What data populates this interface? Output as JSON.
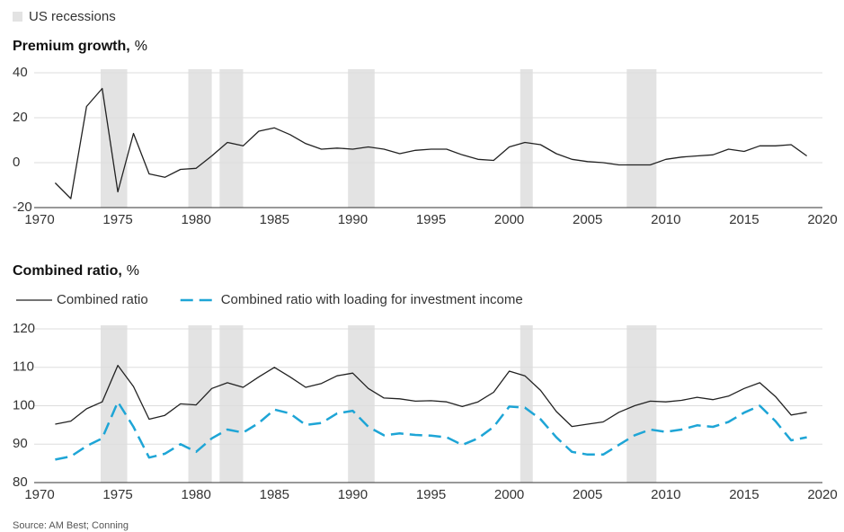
{
  "recessions": {
    "label": "US recessions",
    "color": "#e3e3e3",
    "spans": [
      [
        1973.9,
        1975.6
      ],
      [
        1979.5,
        1981.0
      ],
      [
        1981.5,
        1983.0
      ],
      [
        1989.7,
        1991.4
      ],
      [
        2000.7,
        2001.5
      ],
      [
        2007.5,
        2009.4
      ]
    ]
  },
  "source": "Source: AM Best; Conning",
  "chart_data": [
    {
      "type": "line",
      "title": "Premium growth,",
      "title_unit": "%",
      "x": [
        1971,
        1972,
        1973,
        1974,
        1975,
        1976,
        1977,
        1978,
        1979,
        1980,
        1981,
        1982,
        1983,
        1984,
        1985,
        1986,
        1987,
        1988,
        1989,
        1990,
        1991,
        1992,
        1993,
        1994,
        1995,
        1996,
        1997,
        1998,
        1999,
        2000,
        2001,
        2002,
        2003,
        2004,
        2005,
        2006,
        2007,
        2008,
        2009,
        2010,
        2011,
        2012,
        2013,
        2014,
        2015,
        2016,
        2017,
        2018,
        2019
      ],
      "values": [
        -9,
        -16,
        25,
        33,
        -13,
        13,
        -5,
        -6.5,
        -3,
        -2.5,
        3,
        9,
        7.5,
        14,
        15.5,
        12.5,
        8.5,
        6,
        6.5,
        6,
        7,
        6,
        4,
        5.5,
        6,
        6,
        3.5,
        1.5,
        1,
        7,
        9,
        8,
        4,
        1.5,
        0.5,
        0,
        -1,
        -1,
        -1,
        1.5,
        2.5,
        3,
        3.5,
        6,
        5,
        7.5,
        7.5,
        8,
        3
      ],
      "color": "#222222",
      "xlim": [
        1970,
        2020
      ],
      "xticks": [
        1970,
        1975,
        1980,
        1985,
        1990,
        1995,
        2000,
        2005,
        2010,
        2015,
        2020
      ],
      "ylim": [
        -20,
        40
      ],
      "yticks": [
        -20,
        0,
        20,
        40
      ],
      "grid": true
    },
    {
      "type": "line",
      "title": "Combined ratio,",
      "title_unit": "%",
      "x": [
        1971,
        1972,
        1973,
        1974,
        1975,
        1976,
        1977,
        1978,
        1979,
        1980,
        1981,
        1982,
        1983,
        1984,
        1985,
        1986,
        1987,
        1988,
        1989,
        1990,
        1991,
        1992,
        1993,
        1994,
        1995,
        1996,
        1997,
        1998,
        1999,
        2000,
        2001,
        2002,
        2003,
        2004,
        2005,
        2006,
        2007,
        2008,
        2009,
        2010,
        2011,
        2012,
        2013,
        2014,
        2015,
        2016,
        2017,
        2018,
        2019
      ],
      "series": [
        {
          "name": "Combined ratio",
          "color": "#222222",
          "style": "solid",
          "values": [
            95.2,
            96,
            99.2,
            101,
            110.5,
            105,
            96.5,
            97.5,
            100.5,
            100.2,
            104.5,
            106,
            104.8,
            107.5,
            110,
            107.5,
            104.8,
            105.8,
            107.8,
            108.5,
            104.5,
            102,
            101.8,
            101.2,
            101.3,
            101,
            99.8,
            101,
            103.5,
            109,
            107.8,
            104,
            98.5,
            94.6,
            95.2,
            95.8,
            98.3,
            100,
            101.2,
            101,
            101.4,
            102.2,
            101.6,
            102.5,
            104.5,
            106,
            102.4,
            97.6,
            98.3
          ]
        },
        {
          "name": "Combined ratio with loading for investment income",
          "color": "#1ea5d6",
          "style": "dashed",
          "values": [
            86,
            86.8,
            89.5,
            91.5,
            101,
            94.5,
            86.5,
            87.5,
            90,
            88,
            91.5,
            93.8,
            93,
            95.5,
            99,
            98,
            95,
            95.5,
            98,
            98.7,
            94.5,
            92.3,
            92.8,
            92.4,
            92.2,
            91.8,
            89.8,
            91.5,
            94.5,
            99.8,
            99.5,
            96.5,
            91.8,
            88,
            87.3,
            87.3,
            89.8,
            92.3,
            93.8,
            93.2,
            93.8,
            94.9,
            94.5,
            95.8,
            98.2,
            100,
            96,
            91,
            91.8
          ]
        }
      ],
      "xlim": [
        1970,
        2020
      ],
      "xticks": [
        1970,
        1975,
        1980,
        1985,
        1990,
        1995,
        2000,
        2005,
        2010,
        2015,
        2020
      ],
      "ylim": [
        80,
        120
      ],
      "yticks": [
        80,
        90,
        100,
        110,
        120
      ],
      "grid": true
    }
  ]
}
